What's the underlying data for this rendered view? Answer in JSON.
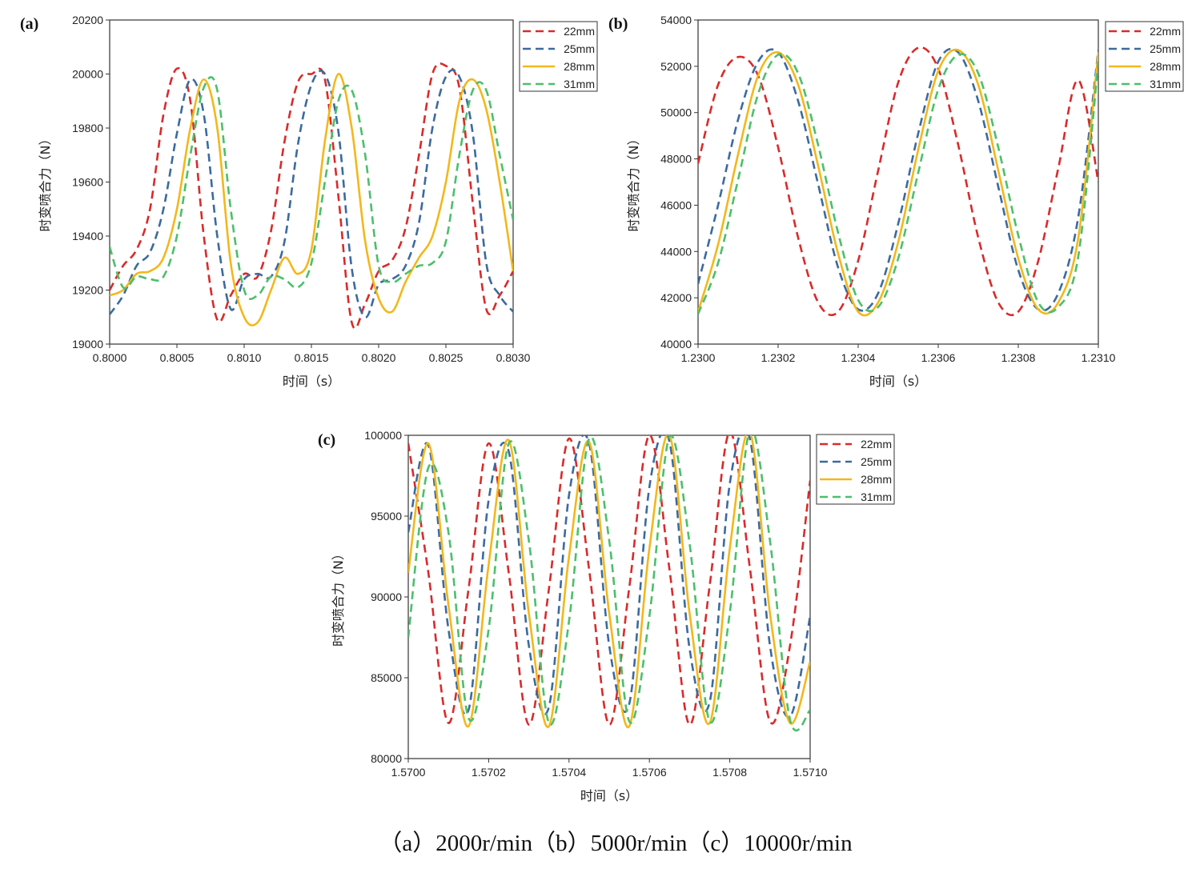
{
  "caption": "（a）2000r/min（b）5000r/min（c）10000r/min",
  "colors": {
    "22mm": "#d82b2b",
    "25mm": "#3b6aa0",
    "28mm": "#f2b81b",
    "31mm": "#4cbf6b"
  },
  "chart_data": [
    {
      "type": "line",
      "panel_label": "(a)",
      "xlabel": "时间（s）",
      "ylabel": "时变喷合力（N）",
      "xlim": [
        0.8,
        0.803
      ],
      "ylim": [
        19000,
        20200
      ],
      "x_ticks": [
        "0.8000",
        "0.8005",
        "0.8010",
        "0.8015",
        "0.8020",
        "0.8025",
        "0.8030"
      ],
      "y_ticks": [
        "19000",
        "19200",
        "19400",
        "19600",
        "19800",
        "20000",
        "20200"
      ],
      "legend_position": "outside-top-right",
      "series": [
        {
          "name": "22mm",
          "style": "dashed",
          "x": [
            0.8,
            0.8001,
            0.8002,
            0.8003,
            0.8004,
            0.8005,
            0.8006,
            0.8007,
            0.8008,
            0.8009,
            0.801,
            0.8011,
            0.8012,
            0.8013,
            0.8014,
            0.8015,
            0.8016,
            0.8017,
            0.8018,
            0.8019,
            0.802,
            0.8021,
            0.8022,
            0.8023,
            0.8024,
            0.8025,
            0.8026,
            0.8027,
            0.8028,
            0.8029,
            0.803
          ],
          "values": [
            19200,
            19290,
            19350,
            19500,
            19850,
            20020,
            19900,
            19400,
            19090,
            19180,
            19260,
            19250,
            19420,
            19750,
            19970,
            20000,
            19980,
            19550,
            19080,
            19150,
            19270,
            19310,
            19430,
            19700,
            20000,
            20030,
            19950,
            19520,
            19130,
            19180,
            19270
          ]
        },
        {
          "name": "25mm",
          "style": "dashed",
          "x": [
            0.8,
            0.8001,
            0.8002,
            0.8003,
            0.8004,
            0.8005,
            0.8006,
            0.8007,
            0.8008,
            0.8009,
            0.801,
            0.8011,
            0.8012,
            0.8013,
            0.8014,
            0.8015,
            0.8016,
            0.8017,
            0.8018,
            0.8019,
            0.802,
            0.8021,
            0.8022,
            0.8023,
            0.8024,
            0.8025,
            0.8026,
            0.8027,
            0.8028,
            0.8029,
            0.803
          ],
          "values": [
            19110,
            19180,
            19290,
            19340,
            19500,
            19780,
            19980,
            19850,
            19400,
            19130,
            19240,
            19260,
            19250,
            19380,
            19740,
            19960,
            20000,
            19790,
            19280,
            19100,
            19220,
            19240,
            19290,
            19450,
            19800,
            19990,
            19990,
            19780,
            19300,
            19180,
            19120
          ]
        },
        {
          "name": "28mm",
          "style": "solid",
          "x": [
            0.8,
            0.8001,
            0.8002,
            0.8003,
            0.8004,
            0.8005,
            0.8006,
            0.8007,
            0.8008,
            0.8009,
            0.801,
            0.8011,
            0.8012,
            0.8013,
            0.8014,
            0.8015,
            0.8016,
            0.8017,
            0.8018,
            0.8019,
            0.802,
            0.8021,
            0.8022,
            0.8023,
            0.8024,
            0.8025,
            0.8026,
            0.8027,
            0.8028,
            0.8029,
            0.803
          ],
          "values": [
            19180,
            19200,
            19260,
            19270,
            19320,
            19500,
            19800,
            19980,
            19800,
            19300,
            19100,
            19080,
            19200,
            19320,
            19260,
            19350,
            19750,
            20000,
            19800,
            19380,
            19170,
            19120,
            19230,
            19320,
            19400,
            19600,
            19900,
            19980,
            19870,
            19600,
            19270
          ]
        },
        {
          "name": "31mm",
          "style": "dashed",
          "x": [
            0.8,
            0.8001,
            0.8002,
            0.8003,
            0.8004,
            0.8005,
            0.8006,
            0.8007,
            0.8008,
            0.8009,
            0.801,
            0.8011,
            0.8012,
            0.8013,
            0.8014,
            0.8015,
            0.8016,
            0.8017,
            0.8018,
            0.8019,
            0.802,
            0.8021,
            0.8022,
            0.8023,
            0.8024,
            0.8025,
            0.8026,
            0.8027,
            0.8028,
            0.8029,
            0.803
          ],
          "values": [
            19360,
            19210,
            19250,
            19240,
            19250,
            19400,
            19700,
            19950,
            19940,
            19500,
            19200,
            19180,
            19250,
            19240,
            19210,
            19300,
            19600,
            19900,
            19940,
            19700,
            19290,
            19230,
            19260,
            19290,
            19300,
            19380,
            19700,
            19940,
            19940,
            19700,
            19460
          ]
        }
      ]
    },
    {
      "type": "line",
      "panel_label": "(b)",
      "xlabel": "时间（s）",
      "ylabel": "时变喷合力（N）",
      "xlim": [
        1.23,
        1.231
      ],
      "ylim": [
        40000,
        54000
      ],
      "x_ticks": [
        "1.2300",
        "1.2302",
        "1.2304",
        "1.2306",
        "1.2308",
        "1.2310"
      ],
      "y_ticks": [
        "40000",
        "42000",
        "44000",
        "46000",
        "48000",
        "50000",
        "52000",
        "54000"
      ],
      "legend_position": "outside-top-right",
      "series": [
        {
          "name": "22mm",
          "style": "dashed",
          "x": [
            1.23,
            1.23005,
            1.2301,
            1.23015,
            1.2302,
            1.23025,
            1.2303,
            1.23035,
            1.2304,
            1.23045,
            1.2305,
            1.23055,
            1.2306,
            1.23065,
            1.2307,
            1.23075,
            1.2308,
            1.23085,
            1.2309,
            1.23095,
            1.231
          ],
          "values": [
            47800,
            51200,
            52400,
            51600,
            48500,
            44600,
            41800,
            41400,
            43600,
            47500,
            51300,
            52800,
            51900,
            48600,
            44600,
            41800,
            41400,
            43600,
            47600,
            51400,
            47000
          ]
        },
        {
          "name": "25mm",
          "style": "dashed",
          "x": [
            1.23,
            1.23005,
            1.2301,
            1.23015,
            1.2302,
            1.23025,
            1.2303,
            1.23035,
            1.2304,
            1.23045,
            1.2305,
            1.23055,
            1.2306,
            1.23065,
            1.2307,
            1.23075,
            1.2308,
            1.23085,
            1.2309,
            1.23095,
            1.231
          ],
          "values": [
            42600,
            46000,
            49700,
            52200,
            52600,
            50500,
            46900,
            43300,
            41500,
            42200,
            45200,
            49100,
            52200,
            52600,
            50500,
            46800,
            43200,
            41500,
            42200,
            45500,
            52700
          ]
        },
        {
          "name": "28mm",
          "style": "solid",
          "x": [
            1.23,
            1.23005,
            1.2301,
            1.23015,
            1.2302,
            1.23025,
            1.2303,
            1.23035,
            1.2304,
            1.23045,
            1.2305,
            1.23055,
            1.2306,
            1.23065,
            1.2307,
            1.23075,
            1.2308,
            1.23085,
            1.2309,
            1.23095,
            1.231
          ],
          "values": [
            41400,
            44300,
            48200,
            51600,
            52600,
            51200,
            47700,
            43900,
            41400,
            41800,
            44400,
            48400,
            51800,
            52700,
            51200,
            47500,
            43700,
            41500,
            41800,
            44600,
            52600
          ]
        },
        {
          "name": "31mm",
          "style": "dashed",
          "x": [
            1.23,
            1.23005,
            1.2301,
            1.23015,
            1.2302,
            1.23025,
            1.2303,
            1.23035,
            1.2304,
            1.23045,
            1.2305,
            1.23055,
            1.2306,
            1.23065,
            1.2307,
            1.23075,
            1.2308,
            1.23085,
            1.2309,
            1.23095,
            1.231
          ],
          "values": [
            41300,
            43500,
            47100,
            50800,
            52500,
            51700,
            48600,
            44800,
            41900,
            41600,
            43700,
            47400,
            51000,
            52500,
            51700,
            48500,
            44700,
            41800,
            41600,
            43800,
            52200
          ]
        }
      ]
    },
    {
      "type": "line",
      "panel_label": "(c)",
      "xlabel": "时间（s）",
      "ylabel": "时变喷合力（N）",
      "xlim": [
        1.57,
        1.571
      ],
      "ylim": [
        80000,
        100000
      ],
      "x_ticks": [
        "1.5700",
        "1.5702",
        "1.5704",
        "1.5706",
        "1.5708",
        "1.5710"
      ],
      "y_ticks": [
        "80000",
        "85000",
        "90000",
        "95000",
        "100000"
      ],
      "legend_position": "outside-top-right",
      "series": [
        {
          "name": "22mm",
          "style": "dashed",
          "x": [
            1.57,
            1.57005,
            1.5701,
            1.57015,
            1.5702,
            1.57025,
            1.5703,
            1.57035,
            1.5704,
            1.57045,
            1.5705,
            1.57055,
            1.5706,
            1.57065,
            1.5707,
            1.57075,
            1.5708,
            1.57085,
            1.5709,
            1.57095,
            1.571
          ],
          "values": [
            99500,
            91500,
            82200,
            90500,
            99500,
            91500,
            82100,
            90500,
            99800,
            91700,
            82100,
            90600,
            100000,
            91700,
            82100,
            90700,
            100200,
            91800,
            82300,
            87000,
            97200
          ]
        },
        {
          "name": "25mm",
          "style": "dashed",
          "x": [
            1.57,
            1.57005,
            1.5701,
            1.57015,
            1.5702,
            1.57025,
            1.5703,
            1.57035,
            1.5704,
            1.57045,
            1.5705,
            1.57055,
            1.5706,
            1.57065,
            1.5707,
            1.57075,
            1.5708,
            1.57085,
            1.5709,
            1.57095,
            1.571
          ],
          "values": [
            94000,
            99400,
            88000,
            83000,
            96000,
            99000,
            87000,
            83200,
            96300,
            99500,
            87000,
            83400,
            96800,
            99600,
            86800,
            83500,
            97000,
            99800,
            87000,
            82600,
            88800
          ]
        },
        {
          "name": "28mm",
          "style": "solid",
          "x": [
            1.57,
            1.57005,
            1.5701,
            1.57015,
            1.5702,
            1.57025,
            1.5703,
            1.57035,
            1.5704,
            1.57045,
            1.5705,
            1.57055,
            1.5706,
            1.57065,
            1.5707,
            1.57075,
            1.5708,
            1.57085,
            1.5709,
            1.57095,
            1.571
          ],
          "values": [
            91500,
            99500,
            89500,
            82000,
            92000,
            99700,
            89000,
            82000,
            92500,
            99600,
            89000,
            82000,
            93000,
            100000,
            89000,
            82200,
            93000,
            100200,
            89000,
            82200,
            86000
          ]
        },
        {
          "name": "31mm",
          "style": "dashed",
          "x": [
            1.57,
            1.57005,
            1.5701,
            1.57015,
            1.5702,
            1.57025,
            1.5703,
            1.57035,
            1.5704,
            1.57045,
            1.5705,
            1.57055,
            1.5706,
            1.57065,
            1.5707,
            1.57075,
            1.5708,
            1.57085,
            1.5709,
            1.57095,
            1.571
          ],
          "values": [
            87500,
            98000,
            94000,
            82500,
            88000,
            99500,
            93500,
            82200,
            88500,
            99800,
            93500,
            82300,
            88800,
            99900,
            93300,
            82300,
            89000,
            100300,
            93500,
            82400,
            83000
          ]
        }
      ]
    }
  ]
}
